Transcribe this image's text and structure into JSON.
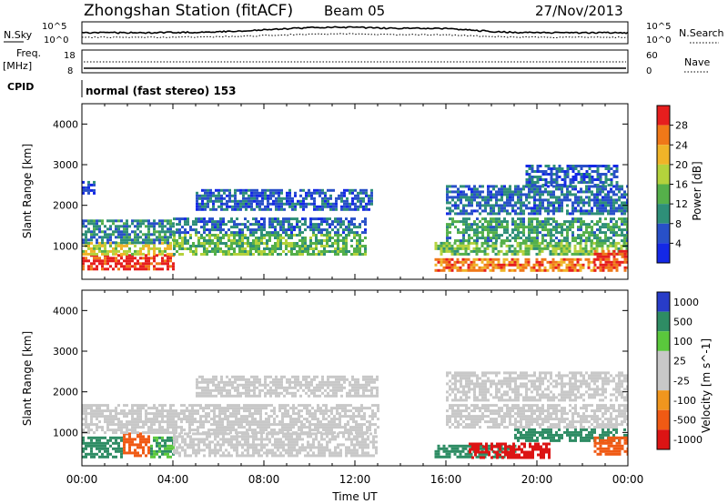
{
  "header": {
    "station": "Zhongshan Station (fitACF)",
    "beam": "Beam 05",
    "date": "27/Nov/2013"
  },
  "status_panels": {
    "nsky_label": "N.Sky",
    "nsearch_label": "N.Search",
    "freq_label_1": "Freq.",
    "freq_label_2": "[MHz]",
    "nave_label": "Nave",
    "cpid_label": "CPID",
    "cpid_text": "normal (fast stereo) 153",
    "noise_ticks": [
      "10^5",
      "10^0"
    ],
    "freq_ticks": [
      "18",
      "8"
    ],
    "nave_ticks": [
      "60",
      "0"
    ]
  },
  "colors": {
    "power": [
      "#1428e6",
      "#2850c8",
      "#2e8f78",
      "#55b04a",
      "#b4d23c",
      "#f0b428",
      "#f07818",
      "#e61e1e"
    ],
    "velocity": [
      "#dc1414",
      "#f05a14",
      "#f0961e",
      "#c8c8c8",
      "#c8c8c8",
      "#5ac83c",
      "#2e8c64",
      "#283cc8"
    ],
    "axis": "#000000"
  },
  "chart_data": [
    {
      "type": "heatmap",
      "panel": "power",
      "title": "",
      "xlabel": "",
      "ylabel": "Slant Range [km]",
      "xlim": [
        0,
        24
      ],
      "ylim": [
        180,
        4500
      ],
      "xticks": [
        "00:00",
        "04:00",
        "08:00",
        "12:00",
        "16:00",
        "20:00",
        "00:00"
      ],
      "yticks": [
        "1000",
        "2000",
        "3000",
        "4000"
      ],
      "colorbar": {
        "label": "Power [dB]",
        "ticks": [
          "4",
          "8",
          "12",
          "16",
          "20",
          "24",
          "28"
        ],
        "range": [
          0,
          30
        ]
      },
      "bands": [
        {
          "t": [
            0.0,
            4.0
          ],
          "r": [
            400,
            800
          ],
          "value": 28
        },
        {
          "t": [
            0.0,
            4.0
          ],
          "r": [
            800,
            1100
          ],
          "value": 18
        },
        {
          "t": [
            0.0,
            4.0
          ],
          "r": [
            1100,
            1650
          ],
          "value": 9
        },
        {
          "t": [
            4.0,
            12.5
          ],
          "r": [
            800,
            1300
          ],
          "value": 13
        },
        {
          "t": [
            4.0,
            12.5
          ],
          "r": [
            1300,
            1700
          ],
          "value": 7
        },
        {
          "t": [
            5.0,
            12.8
          ],
          "r": [
            1900,
            2400
          ],
          "value": 6
        },
        {
          "t": [
            0.0,
            0.6
          ],
          "r": [
            2300,
            2600
          ],
          "value": 5
        },
        {
          "t": [
            15.5,
            22.5
          ],
          "r": [
            400,
            700
          ],
          "value": 24
        },
        {
          "t": [
            15.5,
            24.0
          ],
          "r": [
            800,
            1100
          ],
          "value": 14
        },
        {
          "t": [
            16.0,
            24.0
          ],
          "r": [
            1100,
            1700
          ],
          "value": 11
        },
        {
          "t": [
            16.0,
            24.0
          ],
          "r": [
            1800,
            2500
          ],
          "value": 7
        },
        {
          "t": [
            19.5,
            23.5
          ],
          "r": [
            2500,
            3000
          ],
          "value": 6
        },
        {
          "t": [
            22.5,
            24.0
          ],
          "r": [
            400,
            900
          ],
          "value": 27
        }
      ]
    },
    {
      "type": "heatmap",
      "panel": "velocity",
      "title": "",
      "xlabel": "Time UT",
      "ylabel": "Slant Range [km]",
      "xlim": [
        0,
        24
      ],
      "ylim": [
        180,
        4500
      ],
      "xticks": [
        "00:00",
        "04:00",
        "08:00",
        "12:00",
        "16:00",
        "20:00",
        "00:00"
      ],
      "yticks": [
        "1000",
        "2000",
        "3000",
        "4000"
      ],
      "colorbar": {
        "label": "Velocity [m s^-1]",
        "ticks": [
          "1000",
          "500",
          "100",
          "25",
          "-25",
          "-100",
          "-500",
          "-1000"
        ],
        "range": [
          -1000,
          1000
        ]
      },
      "bands": [
        {
          "t": [
            0.0,
            1.8
          ],
          "r": [
            400,
            900
          ],
          "value": 150
        },
        {
          "t": [
            1.8,
            3.0
          ],
          "r": [
            400,
            1000
          ],
          "value": -300
        },
        {
          "t": [
            3.0,
            4.0
          ],
          "r": [
            400,
            900
          ],
          "value": 100
        },
        {
          "t": [
            0.0,
            13.0
          ],
          "r": [
            1000,
            1700
          ],
          "value": 0
        },
        {
          "t": [
            4.0,
            13.0
          ],
          "r": [
            400,
            1000
          ],
          "value": 0
        },
        {
          "t": [
            5.0,
            13.0
          ],
          "r": [
            1900,
            2400
          ],
          "value": 0
        },
        {
          "t": [
            15.5,
            19.0
          ],
          "r": [
            400,
            700
          ],
          "value": 300
        },
        {
          "t": [
            17.0,
            20.5
          ],
          "r": [
            400,
            750
          ],
          "value": -700
        },
        {
          "t": [
            19.0,
            24.0
          ],
          "r": [
            800,
            1100
          ],
          "value": 300
        },
        {
          "t": [
            16.0,
            24.0
          ],
          "r": [
            1100,
            1700
          ],
          "value": 0
        },
        {
          "t": [
            16.0,
            24.0
          ],
          "r": [
            1800,
            2500
          ],
          "value": 0
        },
        {
          "t": [
            22.5,
            24.0
          ],
          "r": [
            450,
            900
          ],
          "value": -300
        }
      ]
    }
  ]
}
